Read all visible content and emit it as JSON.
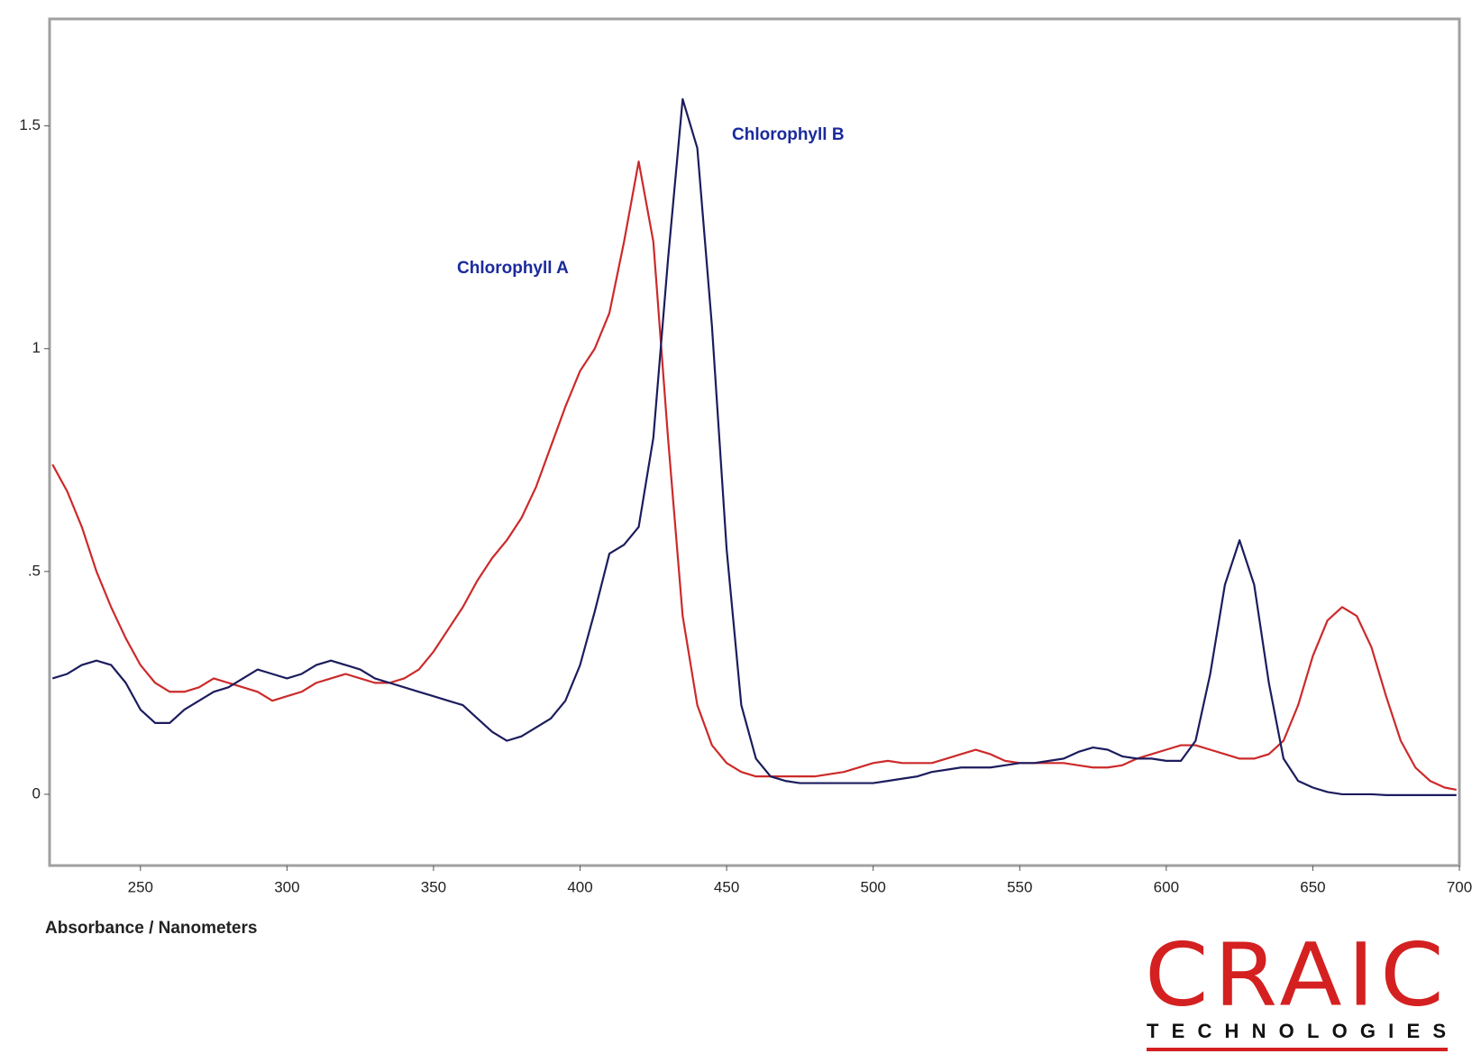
{
  "chart_data": {
    "type": "line",
    "x_label": "Absorbance / Nanometers",
    "x": [
      220,
      225,
      230,
      235,
      240,
      245,
      250,
      255,
      260,
      265,
      270,
      275,
      280,
      285,
      290,
      295,
      300,
      305,
      310,
      315,
      320,
      325,
      330,
      335,
      340,
      345,
      350,
      355,
      360,
      365,
      370,
      375,
      380,
      385,
      390,
      395,
      400,
      405,
      410,
      415,
      420,
      425,
      430,
      435,
      440,
      445,
      450,
      455,
      460,
      465,
      470,
      475,
      480,
      485,
      490,
      495,
      500,
      505,
      510,
      515,
      520,
      525,
      530,
      535,
      540,
      545,
      550,
      555,
      560,
      565,
      570,
      575,
      580,
      585,
      590,
      595,
      600,
      605,
      610,
      615,
      620,
      625,
      630,
      635,
      640,
      645,
      650,
      655,
      660,
      665,
      670,
      675,
      680,
      685,
      690,
      695,
      699
    ],
    "series": [
      {
        "name": "Chlorophyll A",
        "color": "#cc2a2a",
        "values": [
          0.74,
          0.68,
          0.6,
          0.5,
          0.42,
          0.35,
          0.29,
          0.25,
          0.23,
          0.23,
          0.24,
          0.26,
          0.25,
          0.24,
          0.23,
          0.21,
          0.22,
          0.23,
          0.25,
          0.26,
          0.27,
          0.26,
          0.25,
          0.25,
          0.26,
          0.28,
          0.32,
          0.37,
          0.42,
          0.48,
          0.53,
          0.57,
          0.62,
          0.69,
          0.78,
          0.87,
          0.95,
          1.0,
          1.08,
          1.24,
          1.42,
          1.24,
          0.8,
          0.4,
          0.2,
          0.11,
          0.07,
          0.05,
          0.04,
          0.04,
          0.04,
          0.04,
          0.04,
          0.045,
          0.05,
          0.06,
          0.07,
          0.075,
          0.07,
          0.07,
          0.07,
          0.08,
          0.09,
          0.1,
          0.09,
          0.075,
          0.07,
          0.07,
          0.07,
          0.07,
          0.065,
          0.06,
          0.06,
          0.065,
          0.08,
          0.09,
          0.1,
          0.11,
          0.11,
          0.1,
          0.09,
          0.08,
          0.08,
          0.09,
          0.12,
          0.2,
          0.31,
          0.39,
          0.42,
          0.4,
          0.33,
          0.22,
          0.12,
          0.06,
          0.03,
          0.015,
          0.01
        ]
      },
      {
        "name": "Chlorophyll B",
        "color": "#1c1c5e",
        "values": [
          0.26,
          0.27,
          0.29,
          0.3,
          0.29,
          0.25,
          0.19,
          0.16,
          0.16,
          0.19,
          0.21,
          0.23,
          0.24,
          0.26,
          0.28,
          0.27,
          0.26,
          0.27,
          0.29,
          0.3,
          0.29,
          0.28,
          0.26,
          0.25,
          0.24,
          0.23,
          0.22,
          0.21,
          0.2,
          0.17,
          0.14,
          0.12,
          0.13,
          0.15,
          0.17,
          0.21,
          0.29,
          0.41,
          0.54,
          0.56,
          0.6,
          0.8,
          1.2,
          1.56,
          1.45,
          1.05,
          0.55,
          0.2,
          0.08,
          0.04,
          0.03,
          0.025,
          0.025,
          0.025,
          0.025,
          0.025,
          0.025,
          0.03,
          0.035,
          0.04,
          0.05,
          0.055,
          0.06,
          0.06,
          0.06,
          0.065,
          0.07,
          0.07,
          0.075,
          0.08,
          0.095,
          0.105,
          0.1,
          0.085,
          0.08,
          0.08,
          0.075,
          0.075,
          0.12,
          0.27,
          0.47,
          0.57,
          0.47,
          0.25,
          0.08,
          0.03,
          0.015,
          0.005,
          0,
          0,
          0,
          -0.002,
          -0.002,
          -0.002,
          -0.002,
          -0.002,
          -0.002
        ]
      }
    ],
    "xlim": [
      219,
      700
    ],
    "ylim": [
      -0.16,
      1.74
    ],
    "xticks": [
      250,
      300,
      350,
      400,
      450,
      500,
      550,
      600,
      650,
      700
    ],
    "yticks": [
      0,
      {
        "value": 0.5,
        "label": ".5"
      },
      1,
      1.5
    ],
    "grid": false
  },
  "logo": {
    "name": "CRAIC",
    "tagline": "TECHNOLOGIES"
  }
}
